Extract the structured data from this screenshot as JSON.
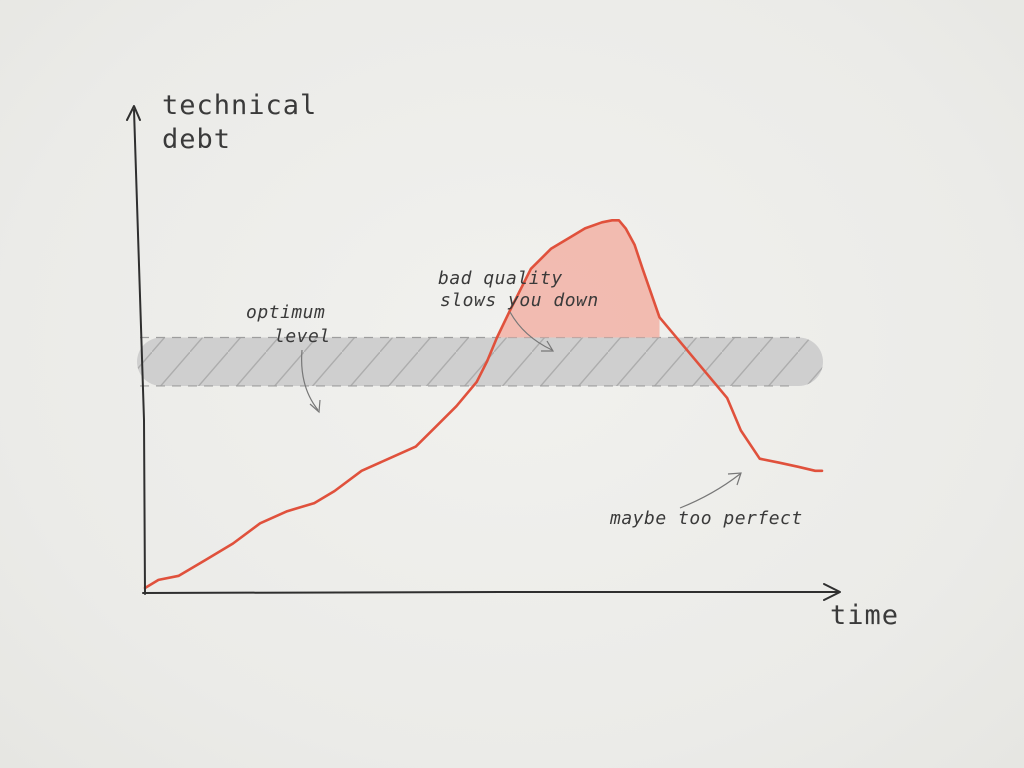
{
  "chart_data": {
    "type": "line",
    "xlabel": "time",
    "ylabel": [
      "technical",
      "debt"
    ],
    "xlim": [
      0,
      100
    ],
    "ylim": [
      0,
      100
    ],
    "grid": false,
    "series": [
      {
        "color": "#e0513c",
        "x": [
          0,
          2,
          5,
          9,
          13,
          17,
          21,
          25,
          28,
          32,
          36,
          40,
          43,
          46,
          49,
          50.5,
          52,
          54,
          57,
          60,
          63,
          65,
          67.5,
          69,
          70,
          71,
          72.3,
          73.5,
          76,
          80,
          83,
          86,
          88,
          90.8,
          93.7,
          96.5,
          99,
          100
        ],
        "y": [
          1,
          3,
          4,
          8,
          12,
          17,
          20,
          22,
          25,
          30,
          33,
          36,
          41,
          46,
          52,
          57,
          63,
          70,
          80,
          85,
          88,
          90,
          91.5,
          92,
          92,
          90,
          86,
          80,
          68,
          60,
          54,
          48,
          40,
          33,
          32,
          31,
          30,
          30
        ]
      }
    ],
    "bands": {
      "optimum": {
        "y": [
          51,
          63
        ],
        "color": "#cfcfcf"
      },
      "over": {
        "color": "#f2b1a6"
      }
    },
    "annotations": [
      {
        "lines": [
          "optimum",
          "level"
        ]
      },
      {
        "lines": [
          "bad quality",
          "slows you down"
        ]
      },
      {
        "lines": [
          "maybe too perfect"
        ]
      }
    ]
  }
}
